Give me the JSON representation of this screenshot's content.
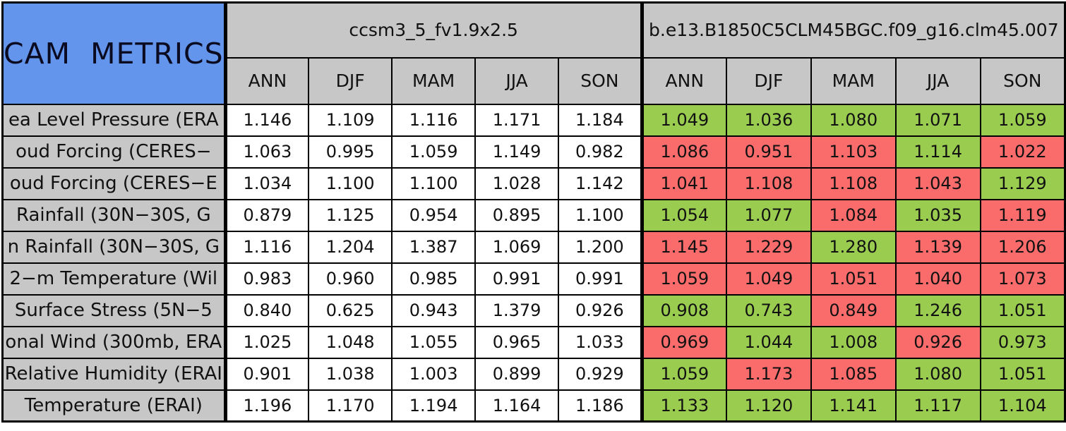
{
  "colors": {
    "header_blue": "#6495EC",
    "header_gray": "#C7C7C7",
    "good_green": "#9ACC50",
    "bad_red": "#FA6C6C",
    "cell_white": "#FFFFFF",
    "border_black": "#000000"
  },
  "chart_data": {
    "type": "table",
    "title": "CAM METRICS",
    "models": [
      "ccsm3_5_fv1.9x2.5",
      "b.e13.B1850C5CLM45BGC.f09_g16.clm45.007"
    ],
    "seasons": [
      "ANN",
      "DJF",
      "MAM",
      "JJA",
      "SON"
    ],
    "cell_color_legend": {
      "green": "good_green",
      "red": "bad_red"
    },
    "rows": [
      {
        "label": "ea Level Pressure (ERA",
        "ccsm3_5": [
          "1.146",
          "1.109",
          "1.116",
          "1.171",
          "1.184"
        ],
        "b_e13": [
          "1.049",
          "1.036",
          "1.080",
          "1.071",
          "1.059"
        ],
        "b_e13_status": [
          "green",
          "green",
          "green",
          "green",
          "green"
        ]
      },
      {
        "label": "oud Forcing (CERES−",
        "ccsm3_5": [
          "1.063",
          "0.995",
          "1.059",
          "1.149",
          "0.982"
        ],
        "b_e13": [
          "1.086",
          "0.951",
          "1.103",
          "1.114",
          "1.022"
        ],
        "b_e13_status": [
          "red",
          "red",
          "red",
          "green",
          "red"
        ]
      },
      {
        "label": "oud Forcing (CERES−E",
        "ccsm3_5": [
          "1.034",
          "1.100",
          "1.100",
          "1.028",
          "1.142"
        ],
        "b_e13": [
          "1.041",
          "1.108",
          "1.108",
          "1.043",
          "1.129"
        ],
        "b_e13_status": [
          "red",
          "red",
          "red",
          "red",
          "green"
        ]
      },
      {
        "label": "Rainfall (30N−30S, G",
        "ccsm3_5": [
          "0.879",
          "1.125",
          "0.954",
          "0.895",
          "1.100"
        ],
        "b_e13": [
          "1.054",
          "1.077",
          "1.084",
          "1.035",
          "1.119"
        ],
        "b_e13_status": [
          "green",
          "green",
          "red",
          "green",
          "red"
        ]
      },
      {
        "label": "n Rainfall (30N−30S, G",
        "ccsm3_5": [
          "1.116",
          "1.204",
          "1.387",
          "1.069",
          "1.200"
        ],
        "b_e13": [
          "1.145",
          "1.229",
          "1.280",
          "1.139",
          "1.206"
        ],
        "b_e13_status": [
          "red",
          "red",
          "green",
          "red",
          "red"
        ]
      },
      {
        "label": "2−m Temperature (Wil",
        "ccsm3_5": [
          "0.983",
          "0.960",
          "0.985",
          "0.991",
          "0.991"
        ],
        "b_e13": [
          "1.059",
          "1.049",
          "1.051",
          "1.040",
          "1.073"
        ],
        "b_e13_status": [
          "red",
          "red",
          "red",
          "red",
          "red"
        ]
      },
      {
        "label": "Surface Stress (5N−5",
        "ccsm3_5": [
          "0.840",
          "0.625",
          "0.943",
          "1.379",
          "0.926"
        ],
        "b_e13": [
          "0.908",
          "0.743",
          "0.849",
          "1.246",
          "1.051"
        ],
        "b_e13_status": [
          "green",
          "green",
          "red",
          "green",
          "green"
        ]
      },
      {
        "label": "onal Wind (300mb, ERA",
        "ccsm3_5": [
          "1.025",
          "1.048",
          "1.055",
          "0.965",
          "1.033"
        ],
        "b_e13": [
          "0.969",
          "1.044",
          "1.008",
          "0.926",
          "0.973"
        ],
        "b_e13_status": [
          "red",
          "green",
          "green",
          "red",
          "green"
        ]
      },
      {
        "label": "Relative Humidity (ERAI",
        "ccsm3_5": [
          "0.901",
          "1.038",
          "1.003",
          "0.899",
          "0.929"
        ],
        "b_e13": [
          "1.059",
          "1.173",
          "1.085",
          "1.080",
          "1.051"
        ],
        "b_e13_status": [
          "green",
          "red",
          "red",
          "green",
          "green"
        ]
      },
      {
        "label": "Temperature (ERAI)",
        "ccsm3_5": [
          "1.196",
          "1.170",
          "1.194",
          "1.164",
          "1.186"
        ],
        "b_e13": [
          "1.133",
          "1.120",
          "1.141",
          "1.117",
          "1.104"
        ],
        "b_e13_status": [
          "green",
          "green",
          "green",
          "green",
          "green"
        ]
      }
    ]
  }
}
